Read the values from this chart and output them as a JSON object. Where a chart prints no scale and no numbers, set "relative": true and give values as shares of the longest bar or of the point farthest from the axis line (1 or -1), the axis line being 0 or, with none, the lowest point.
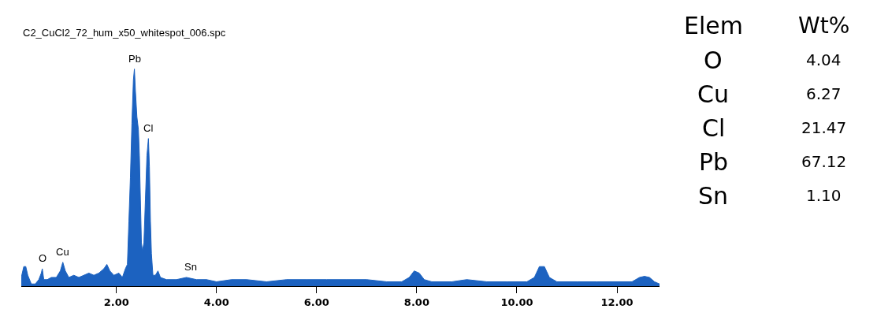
{
  "chart_data": [
    {
      "type": "area",
      "title": "C2_CuCl2_72_hum_x50_whitespot_006.spc",
      "relative": true,
      "color": "#1c62c0",
      "x": [
        0.1,
        0.15,
        0.19,
        0.23,
        0.3,
        0.38,
        0.45,
        0.5,
        0.52,
        0.55,
        0.62,
        0.7,
        0.8,
        0.88,
        0.93,
        0.98,
        1.05,
        1.15,
        1.25,
        1.35,
        1.45,
        1.55,
        1.65,
        1.75,
        1.81,
        1.87,
        1.95,
        2.05,
        2.12,
        2.18,
        2.22,
        2.25,
        2.28,
        2.31,
        2.34,
        2.36,
        2.38,
        2.41,
        2.44,
        2.46,
        2.48,
        2.5,
        2.52,
        2.55,
        2.58,
        2.61,
        2.64,
        2.66,
        2.68,
        2.7,
        2.73,
        2.78,
        2.83,
        2.88,
        3.0,
        3.2,
        3.4,
        3.6,
        3.8,
        4.0,
        4.3,
        4.6,
        5.0,
        5.4,
        5.8,
        6.2,
        6.6,
        7.0,
        7.4,
        7.7,
        7.85,
        7.95,
        8.05,
        8.15,
        8.3,
        8.7,
        9.0,
        9.4,
        9.8,
        10.2,
        10.35,
        10.45,
        10.55,
        10.65,
        10.8,
        11.2,
        11.6,
        12.0,
        12.3,
        12.45,
        12.55,
        12.65,
        12.75,
        12.85
      ],
      "values": [
        0.04,
        0.09,
        0.09,
        0.05,
        0.01,
        0.01,
        0.03,
        0.06,
        0.08,
        0.03,
        0.03,
        0.04,
        0.04,
        0.07,
        0.11,
        0.07,
        0.04,
        0.05,
        0.04,
        0.05,
        0.06,
        0.05,
        0.06,
        0.08,
        0.1,
        0.07,
        0.05,
        0.06,
        0.04,
        0.08,
        0.1,
        0.3,
        0.5,
        0.75,
        0.95,
        1.0,
        0.9,
        0.78,
        0.72,
        0.6,
        0.4,
        0.2,
        0.16,
        0.2,
        0.4,
        0.6,
        0.68,
        0.55,
        0.3,
        0.15,
        0.05,
        0.05,
        0.07,
        0.04,
        0.03,
        0.03,
        0.04,
        0.03,
        0.03,
        0.02,
        0.03,
        0.03,
        0.02,
        0.03,
        0.03,
        0.03,
        0.03,
        0.03,
        0.02,
        0.02,
        0.04,
        0.07,
        0.06,
        0.03,
        0.02,
        0.02,
        0.03,
        0.02,
        0.02,
        0.02,
        0.04,
        0.09,
        0.09,
        0.04,
        0.02,
        0.02,
        0.02,
        0.02,
        0.02,
        0.04,
        0.045,
        0.04,
        0.02,
        0.01
      ],
      "xlim": [
        0.1,
        12.85
      ],
      "xticks": [
        {
          "value": 2,
          "label": "2.00"
        },
        {
          "value": 4,
          "label": "4.00"
        },
        {
          "value": 6,
          "label": "6.00"
        },
        {
          "value": 8,
          "label": "8.00"
        },
        {
          "value": 10,
          "label": "10.00"
        },
        {
          "value": 12,
          "label": "12.00"
        }
      ],
      "tick_labels": "x",
      "annotations": [
        {
          "text": "Pb",
          "x": 2.36,
          "y": 1.0
        },
        {
          "text": "Cl",
          "x": 2.64,
          "y": 0.68
        },
        {
          "text": "Cu",
          "x": 0.93,
          "y": 0.11
        },
        {
          "text": "O",
          "x": 0.52,
          "y": 0.08
        },
        {
          "text": "Sn",
          "x": 3.49,
          "y": 0.04
        }
      ]
    },
    {
      "type": "other",
      "annotations": [
        "Elem",
        "Wt%",
        "O",
        "4.04",
        "Cu",
        "6.27",
        "Cl",
        "21.47",
        "Pb",
        "67.12",
        "Sn",
        "1.10"
      ]
    }
  ]
}
